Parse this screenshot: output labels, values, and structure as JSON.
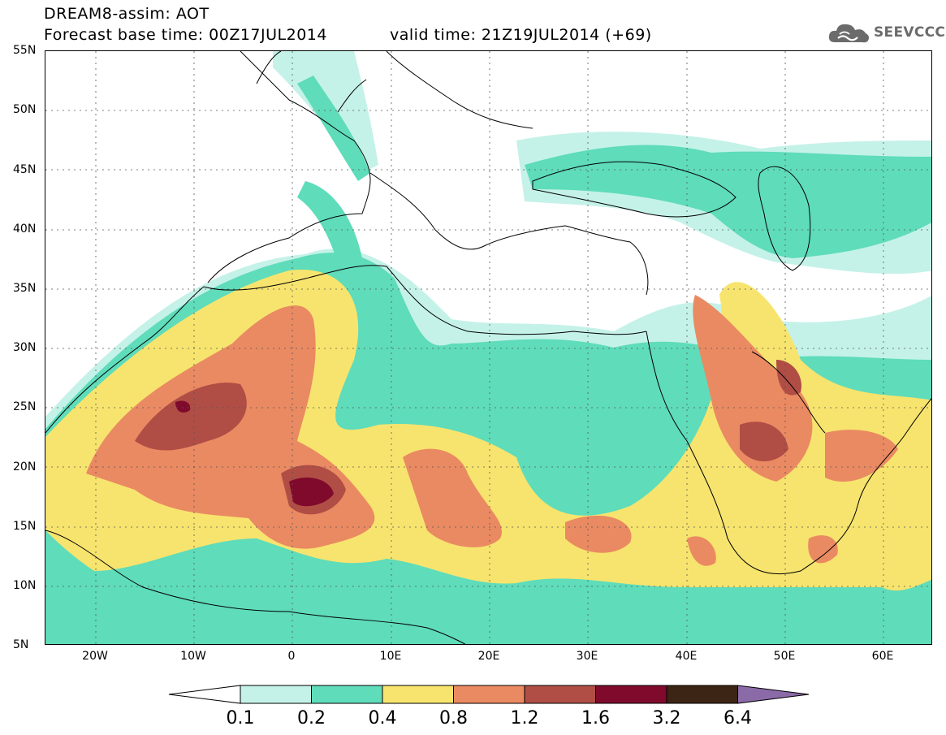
{
  "title": {
    "line1": "DREAM8-assim: AOT",
    "line2": "Forecast base time: 00Z17JUL2014",
    "valid": "valid time: 21Z19JUL2014 (+69)"
  },
  "logo": {
    "text": "SEEVCCC",
    "icon": "cloud-logo-icon"
  },
  "axes": {
    "lat_labels": [
      "55N",
      "50N",
      "45N",
      "40N",
      "35N",
      "30N",
      "25N",
      "20N",
      "15N",
      "10N",
      "5N"
    ],
    "lon_labels": [
      "20W",
      "10W",
      "0",
      "10E",
      "20E",
      "30E",
      "40E",
      "50E",
      "60E"
    ],
    "lat_range": [
      5,
      55
    ],
    "lon_range": [
      -25,
      65
    ]
  },
  "colorbar": {
    "labels": [
      "0.1",
      "0.2",
      "0.4",
      "0.8",
      "1.2",
      "1.6",
      "3.2",
      "6.4"
    ],
    "colors": [
      "#ffffff",
      "#c4f2e8",
      "#5fdcba",
      "#f7e46e",
      "#ea8a62",
      "#b04e45",
      "#7f0a2c",
      "#3c2514",
      "#8b6aa8"
    ]
  },
  "aot_classes": {
    "c1": "#c4f2e8",
    "c2": "#5fdcba",
    "c3": "#f7e46e",
    "c4": "#ea8a62",
    "c5": "#b04e45",
    "c6": "#7f0a2c"
  }
}
